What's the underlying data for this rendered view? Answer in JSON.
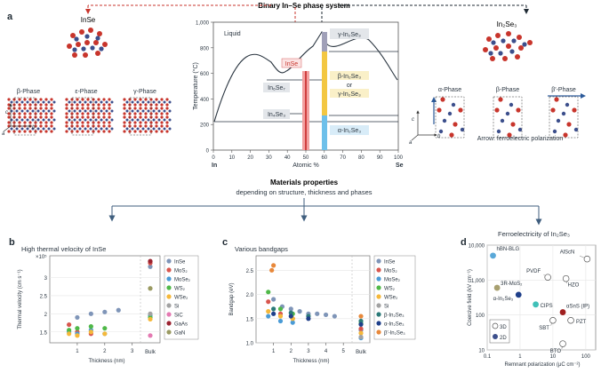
{
  "top_title": "Binary In–Se phase system",
  "panel_a": {
    "letter": "a",
    "inse_title": "InSe",
    "in2se3_title": "In₂Se₃",
    "inse_phases": [
      "β-Phase",
      "ε-Phase",
      "γ-Phase"
    ],
    "in2se3_phases": [
      "α-Phase",
      "β-Phase",
      "β′-Phase"
    ],
    "axis_c": "c",
    "axis_a": "a",
    "axis_b": "b",
    "arrow_note": "Arrow: ferroelectric polarization",
    "phase_diagram": {
      "liquid": "Liquid",
      "ylabel": "Temperature (°C)",
      "xlabel": "Atomic %",
      "left_element": "In",
      "right_element": "Se",
      "yticks": [
        "0",
        "200",
        "400",
        "600",
        "800",
        "1,000"
      ],
      "xticks": [
        "0",
        "10",
        "20",
        "30",
        "40",
        "50",
        "60",
        "70",
        "80",
        "90",
        "100"
      ],
      "labels": {
        "inse": "InSe",
        "in4se3": "In₄Se₃",
        "in6se7": "In₆Se₇",
        "gamma": "γ-In₂Se₃",
        "beta": "β-In₂Se₃",
        "or": "or",
        "gamma2": "γ-In₂Se₃",
        "alpha": "α-In₂Se₃"
      }
    }
  },
  "middle": {
    "title": "Materials properties",
    "subtitle": "depending on structure, thickness and phases"
  },
  "panel_b": {
    "letter": "b",
    "title": "High thermal velocity of InSe",
    "ylabel": "Thermal velocity (cm s⁻¹)",
    "xlabel": "Thickness (nm)",
    "exp": "×10⁵",
    "yticks": [
      "1.5",
      "2",
      "2.5",
      "3"
    ],
    "xticks": [
      "1",
      "2",
      "3"
    ],
    "bulk": "Bulk",
    "legend": [
      "InSe",
      "MoS₂",
      "MoSe₂",
      "WS₂",
      "WSe₂",
      "Si",
      "SiC",
      "GaAs",
      "GaN"
    ],
    "colors": [
      "#7f95b8",
      "#d8564e",
      "#4a9bd6",
      "#4fb848",
      "#f5b83a",
      "#a2a2a2",
      "#e47ab2",
      "#9b2330",
      "#9a9a62"
    ]
  },
  "panel_c": {
    "letter": "c",
    "title": "Various bandgaps",
    "ylabel": "Bandgap (eV)",
    "xlabel": "Thickness (nm)",
    "yticks": [
      "1.0",
      "1.5",
      "2.0",
      "2.5"
    ],
    "xticks": [
      "1",
      "2",
      "3",
      "4",
      "5"
    ],
    "bulk": "Bulk",
    "legend": [
      "InSe",
      "MoS₂",
      "MoSe₂",
      "WS₂",
      "WSe₂",
      "Si",
      "β-In₂Se₃",
      "α-In₂Se₃",
      "β′-In₂Se₃"
    ],
    "colors": [
      "#7f95b8",
      "#d8564e",
      "#4a9bd6",
      "#4fb848",
      "#f5b83a",
      "#a2a2a2",
      "#2b7a78",
      "#1f3f8a",
      "#e8883a"
    ]
  },
  "panel_d": {
    "letter": "d",
    "title": "Ferroelectricity of In₂Se₃",
    "ylabel": "Coercive field (kV cm⁻¹)",
    "xlabel": "Remnant polarization (μC cm⁻²)",
    "yticks": [
      "10,000",
      "1,000",
      "100",
      "10"
    ],
    "xticks": [
      "0.1",
      "1",
      "10",
      "100"
    ],
    "legend_3d": "3D",
    "legend_2d": "2D",
    "labels": [
      "hBN-BLG",
      "3R-MoS₂",
      "α-In₂Se₃",
      "PVDF",
      "AlScN",
      "CIPS",
      "HZO",
      "αSnS (IP)",
      "SBT",
      "PZT",
      "BTO"
    ]
  },
  "chart_data": [
    {
      "type": "scatter",
      "title": "High thermal velocity of InSe",
      "xlabel": "Thickness (nm)",
      "ylabel": "Thermal velocity (cm s⁻¹) ×10⁵",
      "xlim": [
        0,
        3.3
      ],
      "ylim": [
        1.2,
        3.6
      ],
      "series": [
        {
          "name": "InSe",
          "x": [
            1.0,
            1.5,
            2.0,
            2.5
          ],
          "y": [
            1.9,
            2.0,
            2.05,
            2.1
          ],
          "bulk": 3.3
        },
        {
          "name": "MoS₂",
          "x": [
            0.7,
            1.0,
            1.5
          ],
          "y": [
            1.7,
            1.5,
            1.45
          ],
          "bulk": 3.4
        },
        {
          "name": "MoSe₂",
          "x": [
            0.7,
            1.0,
            1.5,
            2.0
          ],
          "y": [
            1.5,
            1.45,
            1.55,
            1.45
          ],
          "bulk": 1.95
        },
        {
          "name": "WS₂",
          "x": [
            0.7,
            1.0,
            1.5,
            2.0
          ],
          "y": [
            1.55,
            1.6,
            1.65,
            1.6
          ],
          "bulk": 1.9
        },
        {
          "name": "WSe₂",
          "x": [
            0.7,
            1.0,
            1.5,
            2.0
          ],
          "y": [
            1.45,
            1.4,
            1.5,
            1.45
          ],
          "bulk": 1.85
        },
        {
          "name": "Si",
          "bulk": 2.0
        },
        {
          "name": "SiC",
          "bulk": 1.4
        },
        {
          "name": "GaAs",
          "bulk": 3.45
        },
        {
          "name": "GaN",
          "bulk": 2.7
        }
      ]
    },
    {
      "type": "scatter",
      "title": "Various bandgaps",
      "xlabel": "Thickness (nm)",
      "ylabel": "Bandgap (eV)",
      "xlim": [
        0,
        5.5
      ],
      "ylim": [
        1.0,
        2.8
      ],
      "series": [
        {
          "name": "InSe",
          "x": [
            1.0,
            1.5,
            2.0,
            2.5,
            3.0,
            3.5,
            4.0,
            4.5
          ],
          "y": [
            1.9,
            1.75,
            1.7,
            1.65,
            1.6,
            1.6,
            1.58,
            1.55
          ],
          "bulk": 1.26
        },
        {
          "name": "MoS₂",
          "x": [
            0.7,
            1.4,
            2.1
          ],
          "y": [
            1.85,
            1.6,
            1.5
          ],
          "bulk": 1.29
        },
        {
          "name": "MoSe₂",
          "x": [
            0.7,
            1.4,
            2.1
          ],
          "y": [
            1.55,
            1.45,
            1.42
          ],
          "bulk": 1.1
        },
        {
          "name": "WS₂",
          "x": [
            0.7,
            1.4,
            2.1
          ],
          "y": [
            2.05,
            1.7,
            1.6
          ],
          "bulk": 1.4
        },
        {
          "name": "WSe₂",
          "x": [
            0.7,
            1.4,
            2.1
          ],
          "y": [
            1.65,
            1.55,
            1.5
          ],
          "bulk": 1.2
        },
        {
          "name": "Si",
          "bulk": 1.12
        },
        {
          "name": "β-In₂Se₃",
          "x": [
            1.0,
            2.0,
            3.0
          ],
          "y": [
            1.7,
            1.62,
            1.55
          ],
          "bulk": 1.45
        },
        {
          "name": "α-In₂Se₃",
          "x": [
            1.0,
            2.0,
            3.0
          ],
          "y": [
            1.6,
            1.55,
            1.5
          ],
          "bulk": 1.38
        },
        {
          "name": "β′-In₂Se₃",
          "x": [
            0.9,
            1.0
          ],
          "y": [
            2.5,
            2.6
          ],
          "bulk": 1.55
        }
      ]
    },
    {
      "type": "scatter",
      "title": "Ferroelectricity of In₂Se₃",
      "xlabel": "Remnant polarization (μC cm⁻²)",
      "ylabel": "Coercive field (kV cm⁻¹)",
      "xscale": "log",
      "yscale": "log",
      "xlim": [
        0.1,
        200
      ],
      "ylim": [
        10,
        10000
      ],
      "points": [
        {
          "name": "hBN-BLG",
          "x": 0.15,
          "y": 5000,
          "dim": "2D",
          "color": "#5aa8d8"
        },
        {
          "name": "3R-MoS₂",
          "x": 0.2,
          "y": 600,
          "dim": "2D",
          "color": "#a8a070"
        },
        {
          "name": "α-In₂Se₃",
          "x": 0.9,
          "y": 380,
          "dim": "2D",
          "color": "#1f3f8a"
        },
        {
          "name": "PVDF",
          "x": 7,
          "y": 1200,
          "dim": "3D",
          "color": "#ffffff"
        },
        {
          "name": "AlScN",
          "x": 110,
          "y": 4000,
          "dim": "3D",
          "color": "#ffffff"
        },
        {
          "name": "CIPS",
          "x": 3,
          "y": 200,
          "dim": "2D",
          "color": "#40c0b8"
        },
        {
          "name": "HZO",
          "x": 25,
          "y": 1100,
          "dim": "3D",
          "color": "#ffffff"
        },
        {
          "name": "αSnS (IP)",
          "x": 20,
          "y": 120,
          "dim": "2D",
          "color": "#a02020"
        },
        {
          "name": "SBT",
          "x": 10,
          "y": 70,
          "dim": "3D",
          "color": "#ffffff"
        },
        {
          "name": "PZT",
          "x": 35,
          "y": 70,
          "dim": "3D",
          "color": "#ffffff"
        },
        {
          "name": "BTO",
          "x": 20,
          "y": 15,
          "dim": "3D",
          "color": "#ffffff"
        }
      ]
    }
  ]
}
